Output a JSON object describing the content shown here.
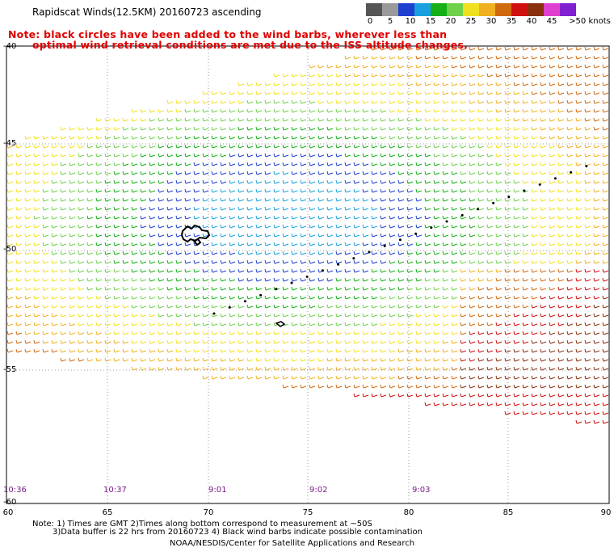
{
  "header": {
    "title": "Rapidscat Winds(12.5KM) 20160723 ascending",
    "note_line1": "Note: black circles have been added to the wind barbs, wherever less than",
    "note_line2": "optimal wind retrieval conditions are met due to the ISS altitude changes."
  },
  "legend": {
    "labels": [
      "0",
      "5",
      "10",
      "15",
      "20",
      "25",
      "30",
      "35",
      "40",
      "45",
      ">50 knots"
    ],
    "colors": [
      "#555555",
      "#9a9a9a",
      "#1f3fd0",
      "#1aa0e0",
      "#16b016",
      "#6fd04a",
      "#f0e020",
      "#f0b020",
      "#d06a10",
      "#d01010",
      "#8a3010",
      "#e040d0",
      "#8020d0"
    ]
  },
  "map": {
    "lon_labels": [
      "60",
      "65",
      "70",
      "75",
      "80",
      "85",
      "90"
    ],
    "lat_labels": [
      "-40",
      "-45",
      "-50",
      "-55",
      "-60"
    ],
    "time_labels": [
      "10:36",
      "10:37",
      "9:01",
      "9:02",
      "9:03"
    ],
    "colors": {
      "grid": "#999999",
      "land": "#000000"
    }
  },
  "footer": {
    "line1": "Note: 1) Times are GMT 2)Times along bottom correspond to measurement at ~50S",
    "line2": "3)Data buffer is 22 hrs from 20160723 4) Black wind barbs indicate possible contamination",
    "line3": "NOAA/NESDIS/Center for Satellite Applications and Research"
  }
}
